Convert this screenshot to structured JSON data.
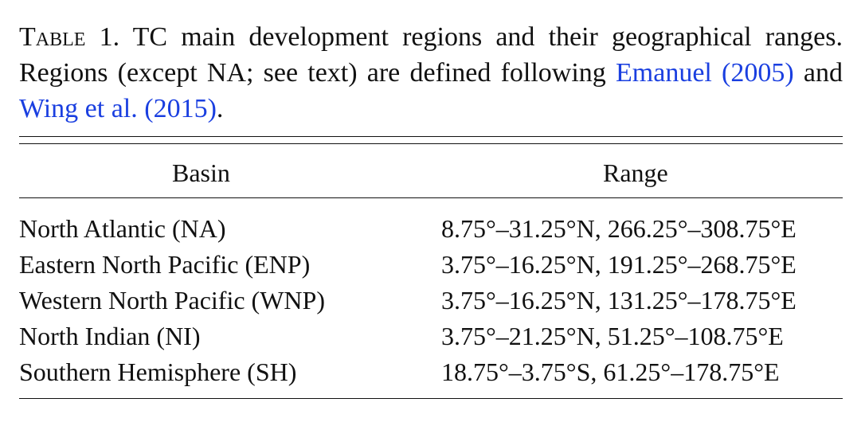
{
  "caption": {
    "table_label": "Table 1.",
    "text_before": " TC main development regions and their geographical ranges. Regions (except NA; see text) are defined following ",
    "ref1": "Emanuel (2005)",
    "text_middle": " and ",
    "ref2": "Wing et al. (2015)",
    "text_end": "."
  },
  "table": {
    "headers": [
      "Basin",
      "Range"
    ],
    "rows": [
      {
        "basin": "North Atlantic (NA)",
        "range": "8.75°–31.25°N, 266.25°–308.75°E"
      },
      {
        "basin": "Eastern North Pacific (ENP)",
        "range": "3.75°–16.25°N, 191.25°–268.75°E"
      },
      {
        "basin": "Western North Pacific (WNP)",
        "range": "3.75°–16.25°N, 131.25°–178.75°E"
      },
      {
        "basin": "North Indian (NI)",
        "range": "3.75°–21.25°N, 51.25°–108.75°E"
      },
      {
        "basin": "Southern Hemisphere (SH)",
        "range": "18.75°–3.75°S, 61.25°–178.75°E"
      }
    ]
  },
  "colors": {
    "link": "#1a3fe0",
    "text": "#111111"
  }
}
